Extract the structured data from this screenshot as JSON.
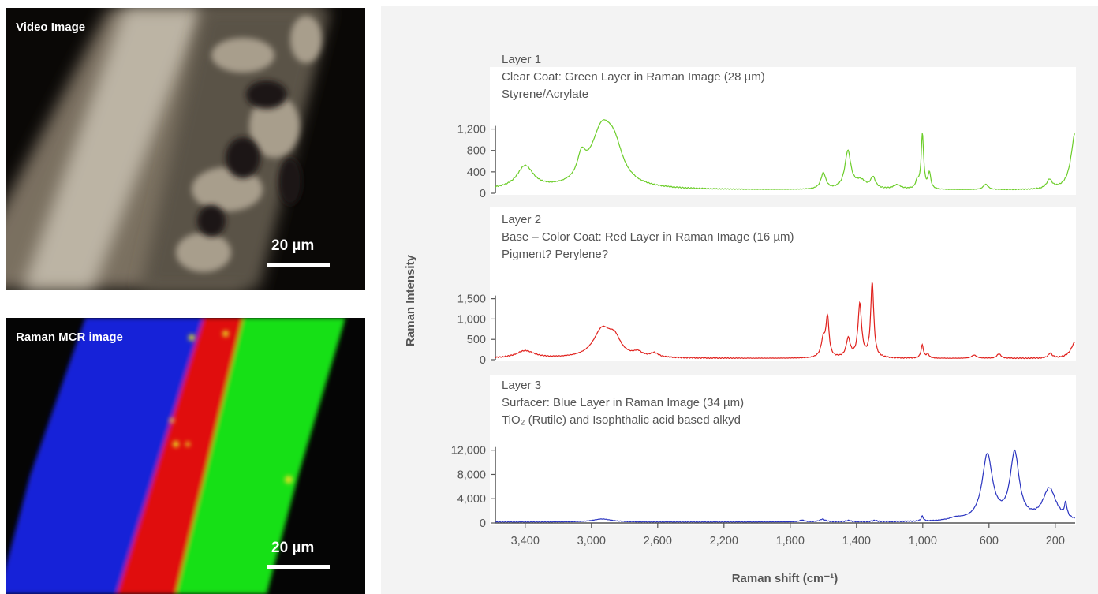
{
  "video_image": {
    "label": "Video Image",
    "scale_label": "20 µm"
  },
  "raman_image": {
    "label": "Raman MCR image",
    "scale_label": "20 µm"
  },
  "colors": {
    "layer1": "#6ccd2a",
    "layer2": "#e0201c",
    "layer3": "#2a34c0",
    "axis": "#555555",
    "panel_bg": "#f3f3f3"
  },
  "chart_data": {
    "type": "line",
    "xlabel": "Raman shift (cm⁻¹)",
    "ylabel": "Raman Intensity",
    "x_direction": "reversed",
    "xlim": [
      3580,
      80
    ],
    "xticks": [
      3400,
      3000,
      2600,
      2200,
      1800,
      1400,
      1000,
      600,
      200
    ],
    "xtick_labels": [
      "3,400",
      "3,000",
      "2,600",
      "2,200",
      "1,800",
      "1,400",
      "1,000",
      "600",
      "200"
    ],
    "panels": [
      {
        "name": "Layer 1",
        "title_lines": [
          "Layer 1",
          "Clear Coat: Green Layer in Raman Image (28 µm)",
          "Styrene/Acrylate"
        ],
        "color": "#6ccd2a",
        "ylim": [
          0,
          1400
        ],
        "yticks": [
          0,
          400,
          800,
          1200
        ],
        "ytick_labels": [
          "0",
          "400",
          "800",
          "1,200"
        ],
        "peaks": [
          [
            3400,
            420,
            60
          ],
          [
            3060,
            400,
            30
          ],
          [
            2935,
            1080,
            85
          ],
          [
            2860,
            480,
            60
          ],
          [
            1600,
            300,
            18
          ],
          [
            1452,
            700,
            22
          ],
          [
            1375,
            150,
            40
          ],
          [
            1300,
            200,
            18
          ],
          [
            1155,
            80,
            30
          ],
          [
            1033,
            140,
            12
          ],
          [
            1002,
            1020,
            9
          ],
          [
            960,
            300,
            10
          ],
          [
            620,
            100,
            18
          ],
          [
            235,
            170,
            20
          ],
          [
            80,
            1060,
            30
          ]
        ],
        "baseline": 60
      },
      {
        "name": "Layer 2",
        "title_lines": [
          "Layer 2",
          "Base – Color Coat: Red Layer in Raman Image (16 µm)",
          "Pigment? Perylene?"
        ],
        "color": "#e0201c",
        "ylim": [
          0,
          1900
        ],
        "yticks": [
          0,
          500,
          1000,
          1500
        ],
        "ytick_labels": [
          "0",
          "500",
          "1,000",
          "1,500"
        ],
        "peaks": [
          [
            3400,
            180,
            65
          ],
          [
            2935,
            680,
            65
          ],
          [
            2860,
            380,
            45
          ],
          [
            2720,
            110,
            30
          ],
          [
            2620,
            100,
            30
          ],
          [
            1600,
            440,
            16
          ],
          [
            1575,
            950,
            11
          ],
          [
            1450,
            460,
            15
          ],
          [
            1380,
            1300,
            13
          ],
          [
            1305,
            1860,
            11
          ],
          [
            1003,
            320,
            9
          ],
          [
            970,
            100,
            10
          ],
          [
            690,
            80,
            18
          ],
          [
            540,
            110,
            15
          ],
          [
            230,
            120,
            14
          ],
          [
            80,
            400,
            30
          ]
        ],
        "baseline": 30
      },
      {
        "name": "Layer 3",
        "title_lines": [
          "Layer 3",
          "Surfacer: Blue Layer in Raman Image (34 µm)",
          "TiO₂ (Rutile) and Isophthalic acid based alkyd"
        ],
        "color": "#2a34c0",
        "ylim": [
          0,
          13000
        ],
        "yticks": [
          0,
          4000,
          8000,
          12000
        ],
        "ytick_labels": [
          "0",
          "4,000",
          "8,000",
          "12,000"
        ],
        "peaks": [
          [
            2935,
            500,
            70
          ],
          [
            1730,
            300,
            18
          ],
          [
            1605,
            450,
            20
          ],
          [
            1450,
            200,
            20
          ],
          [
            1290,
            200,
            18
          ],
          [
            1003,
            800,
            8
          ],
          [
            800,
            400,
            50
          ],
          [
            610,
            10800,
            38
          ],
          [
            445,
            11000,
            33
          ],
          [
            235,
            5300,
            48
          ],
          [
            137,
            2200,
            9
          ]
        ],
        "baseline": 150
      }
    ]
  }
}
